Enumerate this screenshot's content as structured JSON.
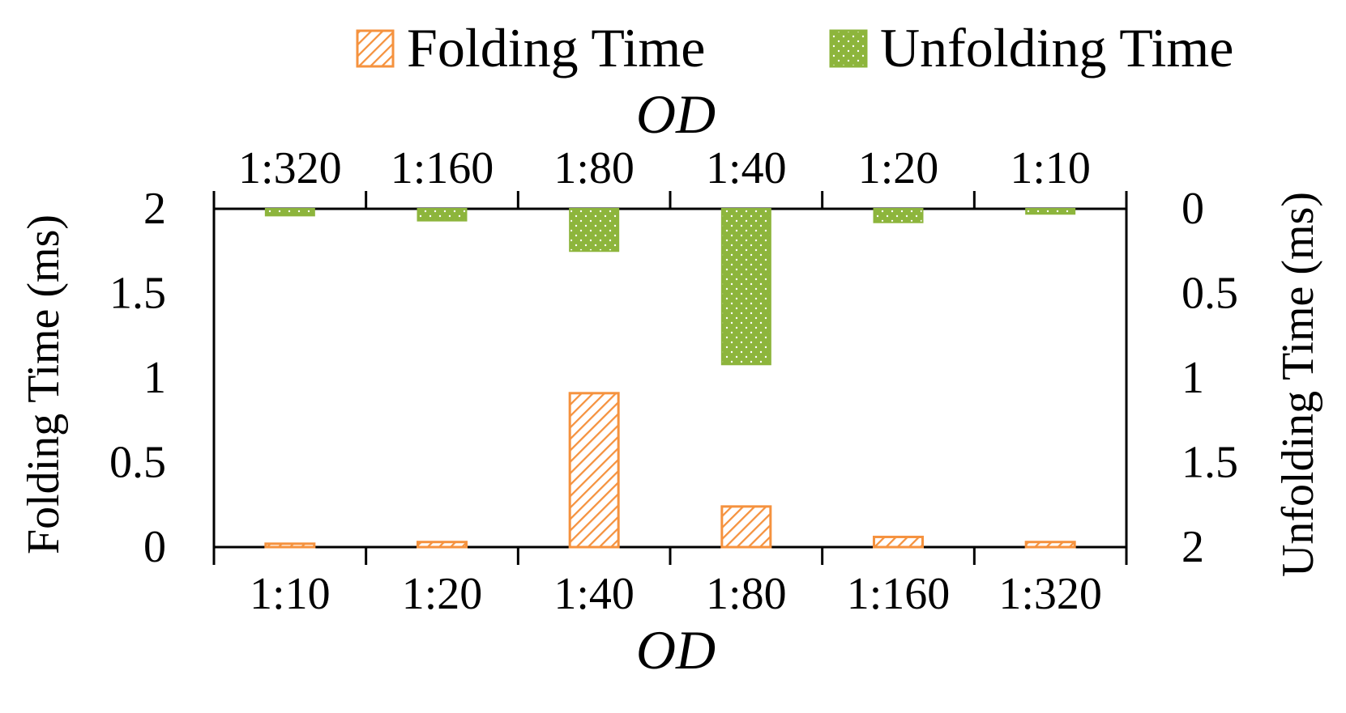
{
  "chart_data": {
    "type": "bar",
    "colors": {
      "folding": "#F5923E",
      "unfolding": "#8DB53C"
    },
    "legend": {
      "position": "top-right",
      "entries": [
        "Folding Time",
        "Unfolding Time"
      ]
    },
    "bottom": {
      "xlabel": "OD",
      "ylabel": "Folding Time (ms)",
      "categories": [
        "1:10",
        "1:20",
        "1:40",
        "1:80",
        "1:160",
        "1:320"
      ],
      "series": [
        {
          "name": "Folding Time",
          "values": [
            0.02,
            0.03,
            0.91,
            0.24,
            0.06,
            0.03
          ]
        }
      ],
      "ylim": [
        0,
        2
      ],
      "yticks": [
        "0",
        "0.5",
        "1",
        "1.5",
        "2"
      ]
    },
    "top": {
      "xlabel": "OD",
      "ylabel": "Unfolding Time (ms)",
      "categories": [
        "1:320",
        "1:160",
        "1:80",
        "1:40",
        "1:20",
        "1:10"
      ],
      "series": [
        {
          "name": "Unfolding Time",
          "values": [
            0.04,
            0.07,
            0.25,
            0.92,
            0.08,
            0.03
          ]
        }
      ],
      "ylim": [
        0,
        2
      ],
      "yticks": [
        "0",
        "0.5",
        "1",
        "1.5",
        "2"
      ],
      "inverted": true
    }
  }
}
